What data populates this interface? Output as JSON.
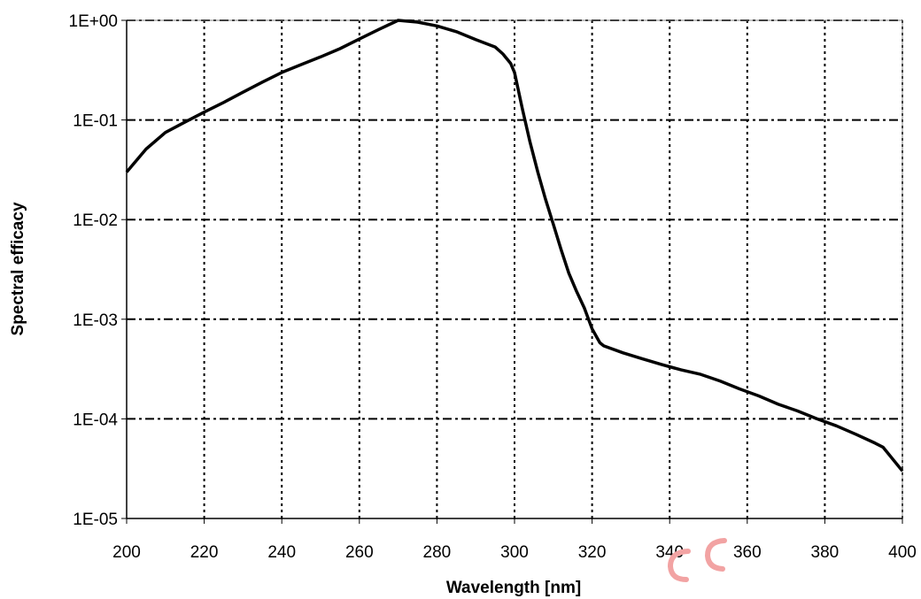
{
  "chart_data": {
    "type": "line",
    "title": "",
    "xlabel": "Wavelength [nm]",
    "ylabel": "Spectral efficacy",
    "xlim": [
      200,
      400
    ],
    "ylim": [
      1e-05,
      1
    ],
    "yscale": "log",
    "grid": true,
    "legend": "none",
    "x_ticks": [
      "200",
      "220",
      "240",
      "260",
      "280",
      "300",
      "320",
      "340",
      "360",
      "380",
      "400"
    ],
    "y_ticks": [
      "1E+00",
      "1E-01",
      "1E-02",
      "1E-03",
      "1E-04",
      "1E-05"
    ],
    "series": [
      {
        "color": "#000000",
        "x": [
          200,
          205,
          210,
          215,
          220,
          225,
          230,
          235,
          240,
          245,
          250,
          255,
          260,
          265,
          270,
          275,
          280,
          285,
          290,
          295,
          297,
          299,
          300,
          302,
          304,
          306,
          308,
          310,
          312,
          314,
          316,
          318,
          320,
          322,
          323,
          328,
          333,
          338,
          343,
          348,
          353,
          358,
          363,
          368,
          373,
          378,
          383,
          388,
          393,
          395,
          400
        ],
        "y": [
          0.03,
          0.051,
          0.075,
          0.095,
          0.12,
          0.15,
          0.19,
          0.24,
          0.3,
          0.36,
          0.43,
          0.52,
          0.65,
          0.81,
          1.0,
          0.96,
          0.88,
          0.77,
          0.64,
          0.54,
          0.46,
          0.37,
          0.3,
          0.13,
          0.06,
          0.03,
          0.016,
          0.009,
          0.005,
          0.0029,
          0.0019,
          0.0013,
          0.0008,
          0.00058,
          0.00054,
          0.00046,
          0.0004,
          0.00035,
          0.00031,
          0.00028,
          0.00024,
          0.0002,
          0.00017,
          0.00014,
          0.00012,
          0.0001,
          8.5e-05,
          7e-05,
          5.7e-05,
          5.2e-05,
          3e-05
        ]
      }
    ]
  },
  "overlay": {
    "watermark_color": "#f2a3a3"
  }
}
